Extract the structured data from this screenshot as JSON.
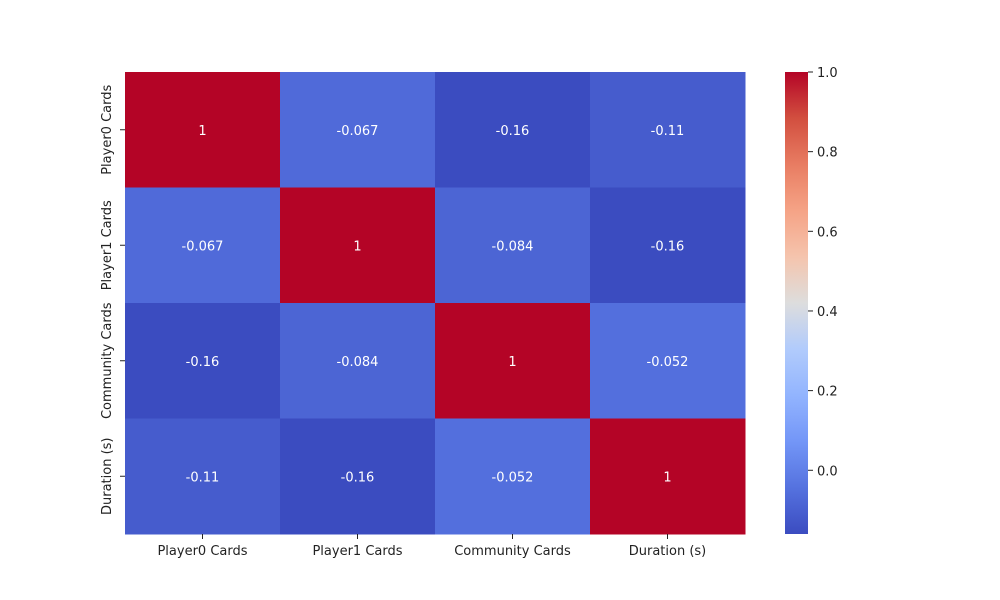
{
  "chart_data": {
    "type": "heatmap",
    "title": "",
    "xlabel": "",
    "ylabel": "",
    "x_categories": [
      "Player0 Cards",
      "Player1 Cards",
      "Community Cards",
      "Duration (s)"
    ],
    "y_categories": [
      "Player0 Cards",
      "Player1 Cards",
      "Community Cards",
      "Duration (s)"
    ],
    "values": [
      [
        1,
        -0.067,
        -0.16,
        -0.11
      ],
      [
        -0.067,
        1,
        -0.084,
        -0.16
      ],
      [
        -0.16,
        -0.084,
        1,
        -0.052
      ],
      [
        -0.11,
        -0.16,
        -0.052,
        1
      ]
    ],
    "annotations": [
      [
        "1",
        "-0.067",
        "-0.16",
        "-0.11"
      ],
      [
        "-0.067",
        "1",
        "-0.084",
        "-0.16"
      ],
      [
        "-0.16",
        "-0.084",
        "1",
        "-0.052"
      ],
      [
        "-0.11",
        "-0.16",
        "-0.052",
        "1"
      ]
    ],
    "colormap": "coolwarm",
    "colorbar": {
      "range": [
        -0.16,
        1.0
      ],
      "ticks": [
        0.0,
        0.2,
        0.4,
        0.6,
        0.8,
        1.0
      ],
      "tick_labels": [
        "0.0",
        "0.2",
        "0.4",
        "0.6",
        "0.8",
        "1.0"
      ]
    },
    "grid": false
  }
}
